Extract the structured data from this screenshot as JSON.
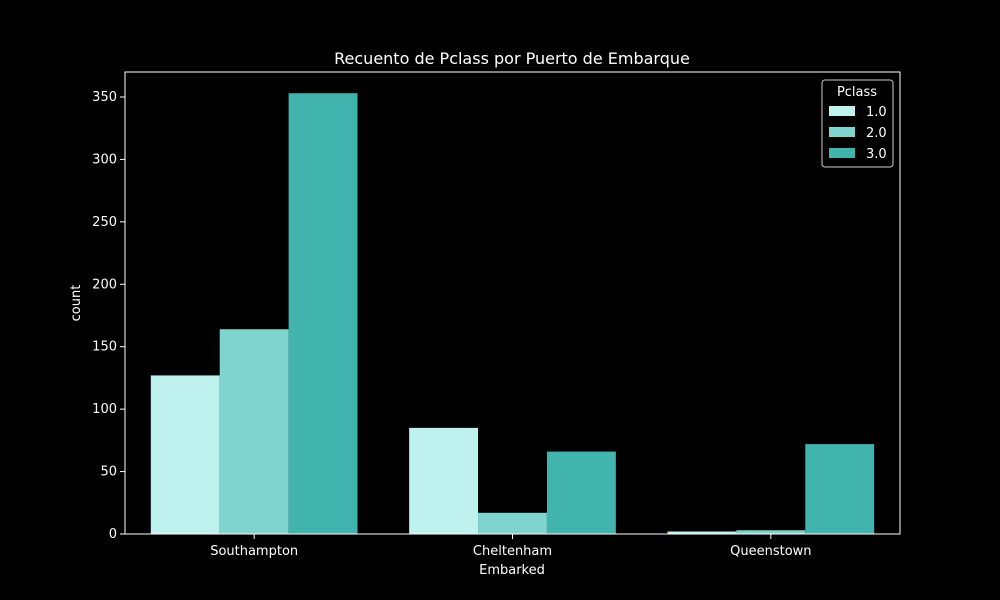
{
  "chart_data": {
    "type": "bar",
    "title": "Recuento de Pclass por Puerto de Embarque",
    "xlabel": "Embarked",
    "ylabel": "count",
    "categories": [
      "Southampton",
      "Cheltenham",
      "Queenstown"
    ],
    "series": [
      {
        "name": "1.0",
        "color": "#bff2ee",
        "values": [
          127,
          85,
          2
        ]
      },
      {
        "name": "2.0",
        "color": "#7fd4ce",
        "values": [
          164,
          17,
          3
        ]
      },
      {
        "name": "3.0",
        "color": "#42b4ae",
        "values": [
          353,
          66,
          72
        ]
      }
    ],
    "ylim": [
      0,
      370
    ],
    "yticks": [
      0,
      50,
      100,
      150,
      200,
      250,
      300,
      350
    ],
    "grid": false,
    "legend": {
      "title": "Pclass",
      "placement": "top-right"
    }
  }
}
